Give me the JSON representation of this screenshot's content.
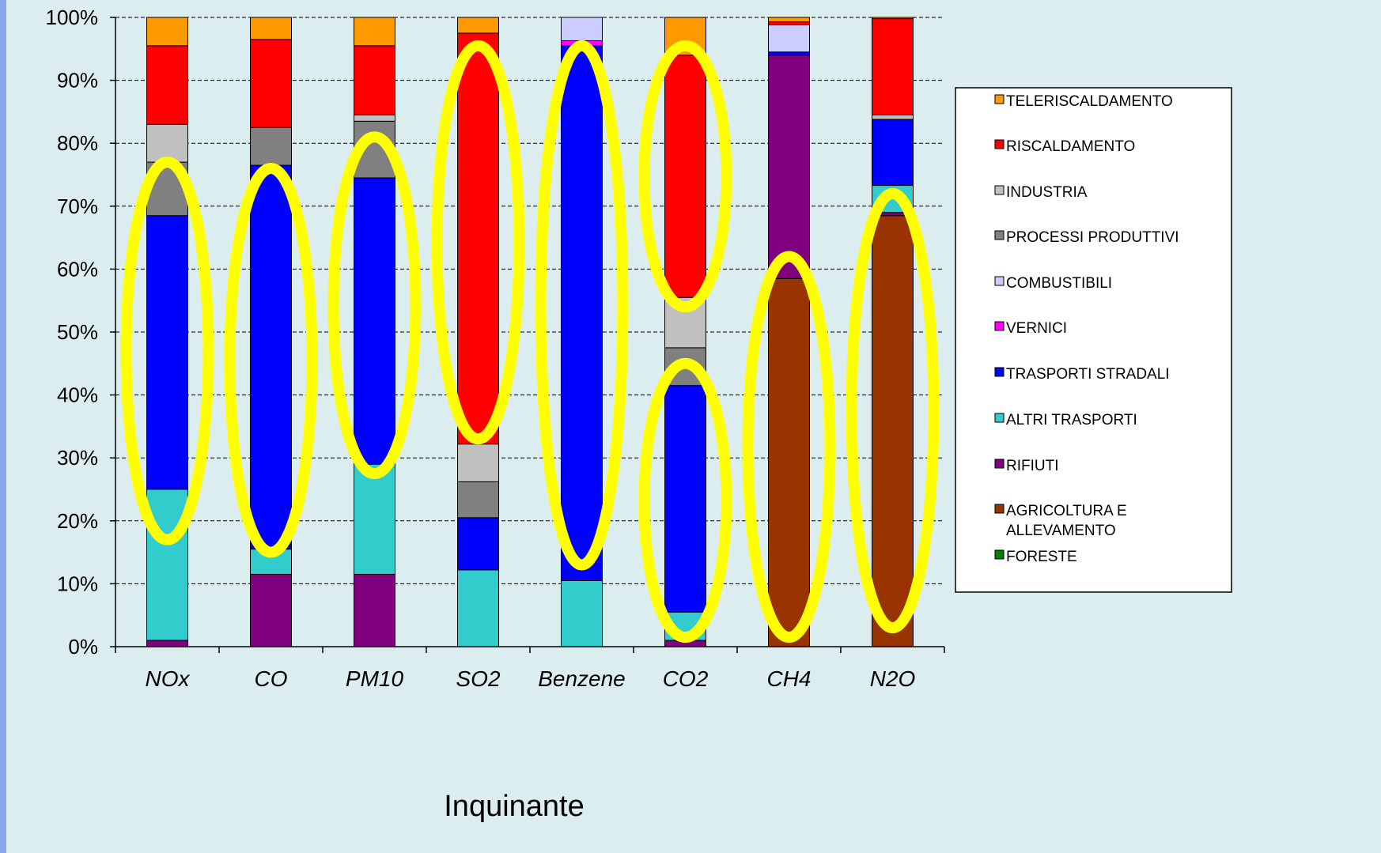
{
  "chart_data": {
    "type": "bar",
    "stacked": true,
    "normalized": true,
    "categories": [
      "NOx",
      "CO",
      "PM10",
      "SO2",
      "Benzene",
      "CO2",
      "CH4",
      "N2O"
    ],
    "xlabel": "Inquinante",
    "ylabel": "",
    "ylim": [
      0,
      100
    ],
    "y_ticks": [
      "0%",
      "10%",
      "20%",
      "30%",
      "40%",
      "50%",
      "60%",
      "70%",
      "80%",
      "90%",
      "100%"
    ],
    "grid": "horizontal dashed",
    "legend_position": "right",
    "series": [
      {
        "name": "FORESTE",
        "color": "#008000",
        "values": [
          0,
          0,
          0,
          0,
          0,
          0,
          0,
          0
        ]
      },
      {
        "name": "AGRICOLTURA E ALLEVAMENTO",
        "color": "#993300",
        "values": [
          0,
          0,
          0,
          0,
          0,
          0,
          58.5,
          68.5
        ]
      },
      {
        "name": "RIFIUTI",
        "color": "#800080",
        "values": [
          1,
          11.5,
          11.5,
          0,
          0,
          1,
          35.5,
          0.5
        ]
      },
      {
        "name": "ALTRI TRASPORTI",
        "color": "#33cccc",
        "values": [
          24,
          4,
          17.5,
          12.2,
          10.5,
          4.5,
          0,
          4.3
        ]
      },
      {
        "name": "TRASPORTI STRADALI",
        "color": "#0000ff",
        "values": [
          43.5,
          61,
          45.5,
          8.3,
          85,
          36,
          0.5,
          10.5
        ]
      },
      {
        "name": "VERNICI",
        "color": "#ff00ff",
        "values": [
          0,
          0,
          0,
          0,
          0.8,
          0,
          0,
          0
        ]
      },
      {
        "name": "COMBUSTIBILI",
        "color": "#ccccff",
        "values": [
          0,
          0,
          0,
          0,
          3.7,
          0,
          4.3,
          0
        ]
      },
      {
        "name": "PROCESSI PRODUTTIVI",
        "color": "#808080",
        "values": [
          8.5,
          6,
          9,
          5.7,
          0,
          6,
          0,
          0
        ]
      },
      {
        "name": "INDUSTRIA",
        "color": "#c0c0c0",
        "values": [
          6,
          0,
          1,
          6,
          0,
          8,
          0,
          0.7
        ]
      },
      {
        "name": "RISCALDAMENTO",
        "color": "#ff0000",
        "values": [
          12.5,
          14,
          11,
          65.3,
          0,
          38.5,
          0.5,
          15.3
        ]
      },
      {
        "name": "TELERISCALDAMENTO",
        "color": "#ff9900",
        "values": [
          4.5,
          3.5,
          4.5,
          2.5,
          0,
          6,
          0.7,
          0.2
        ]
      }
    ],
    "legend_order": [
      "TELERISCALDAMENTO",
      "RISCALDAMENTO",
      "INDUSTRIA",
      "PROCESSI PRODUTTIVI",
      "COMBUSTIBILI",
      "VERNICI",
      "TRASPORTI STRADALI",
      "ALTRI TRASPORTI",
      "RIFIUTI",
      "AGRICOLTURA E ALLEVAMENTO",
      "FORESTE"
    ],
    "highlights": [
      {
        "category": "NOx",
        "from": 17,
        "to": 77
      },
      {
        "category": "CO",
        "from": 15,
        "to": 76
      },
      {
        "category": "PM10",
        "from": 27.5,
        "to": 81
      },
      {
        "category": "SO2",
        "from": 33,
        "to": 95.5
      },
      {
        "category": "Benzene",
        "from": 13,
        "to": 95.5
      },
      {
        "category": "CO2",
        "from": 54,
        "to": 95.5
      },
      {
        "category": "CO2",
        "from": 1.5,
        "to": 45
      },
      {
        "category": "CH4",
        "from": 1.5,
        "to": 62
      },
      {
        "category": "N2O",
        "from": 3,
        "to": 72
      }
    ],
    "highlight_color": "#ffff00"
  }
}
